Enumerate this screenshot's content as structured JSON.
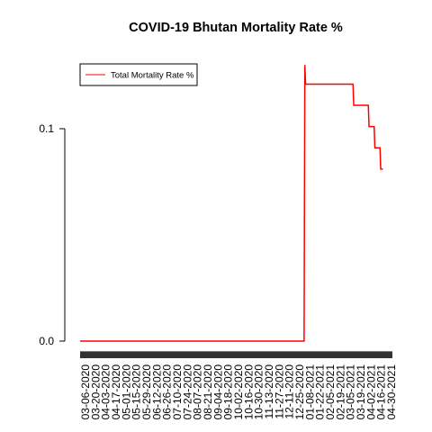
{
  "chart_data": {
    "type": "line",
    "title": "COVID-19 Bhutan Mortality Rate %",
    "xlabel": "",
    "ylabel": "",
    "ylim": [
      -0.003,
      0.13
    ],
    "yticks": [
      0.0,
      0.1
    ],
    "ytick_labels": [
      "0.0",
      "0.1"
    ],
    "x_range": [
      "2020-03-06",
      "2021-05-08"
    ],
    "x_tick_labels": [
      "03-06-2020",
      "03-20-2020",
      "04-03-2020",
      "04-17-2020",
      "05-01-2020",
      "05-15-2020",
      "05-29-2020",
      "06-12-2020",
      "06-26-2020",
      "07-10-2020",
      "07-24-2020",
      "08-07-2020",
      "08-21-2020",
      "09-04-2020",
      "09-18-2020",
      "10-02-2020",
      "10-16-2020",
      "10-30-2020",
      "11-13-2020",
      "11-27-2020",
      "12-11-2020",
      "12-25-2020",
      "01-08-2021",
      "01-22-2021",
      "02-05-2021",
      "02-19-2021",
      "03-05-2021",
      "03-19-2021",
      "04-02-2021",
      "04-16-2021",
      "04-30-2021"
    ],
    "grid": false,
    "legend": {
      "position": "top-left",
      "entries": [
        "Total Mortality Rate %"
      ]
    },
    "series": [
      {
        "name": "Total Mortality Rate %",
        "color": "#ff0000",
        "points": [
          [
            "2020-03-06",
            0.0
          ],
          [
            "2021-01-07",
            0.0
          ],
          [
            "2021-01-08",
            0.13
          ],
          [
            "2021-01-09",
            0.121
          ],
          [
            "2021-03-15",
            0.121
          ],
          [
            "2021-03-16",
            0.111
          ],
          [
            "2021-04-05",
            0.111
          ],
          [
            "2021-04-06",
            0.101
          ],
          [
            "2021-04-13",
            0.101
          ],
          [
            "2021-04-14",
            0.091
          ],
          [
            "2021-04-21",
            0.091
          ],
          [
            "2021-04-22",
            0.081
          ],
          [
            "2021-04-25",
            0.081
          ]
        ]
      }
    ]
  }
}
